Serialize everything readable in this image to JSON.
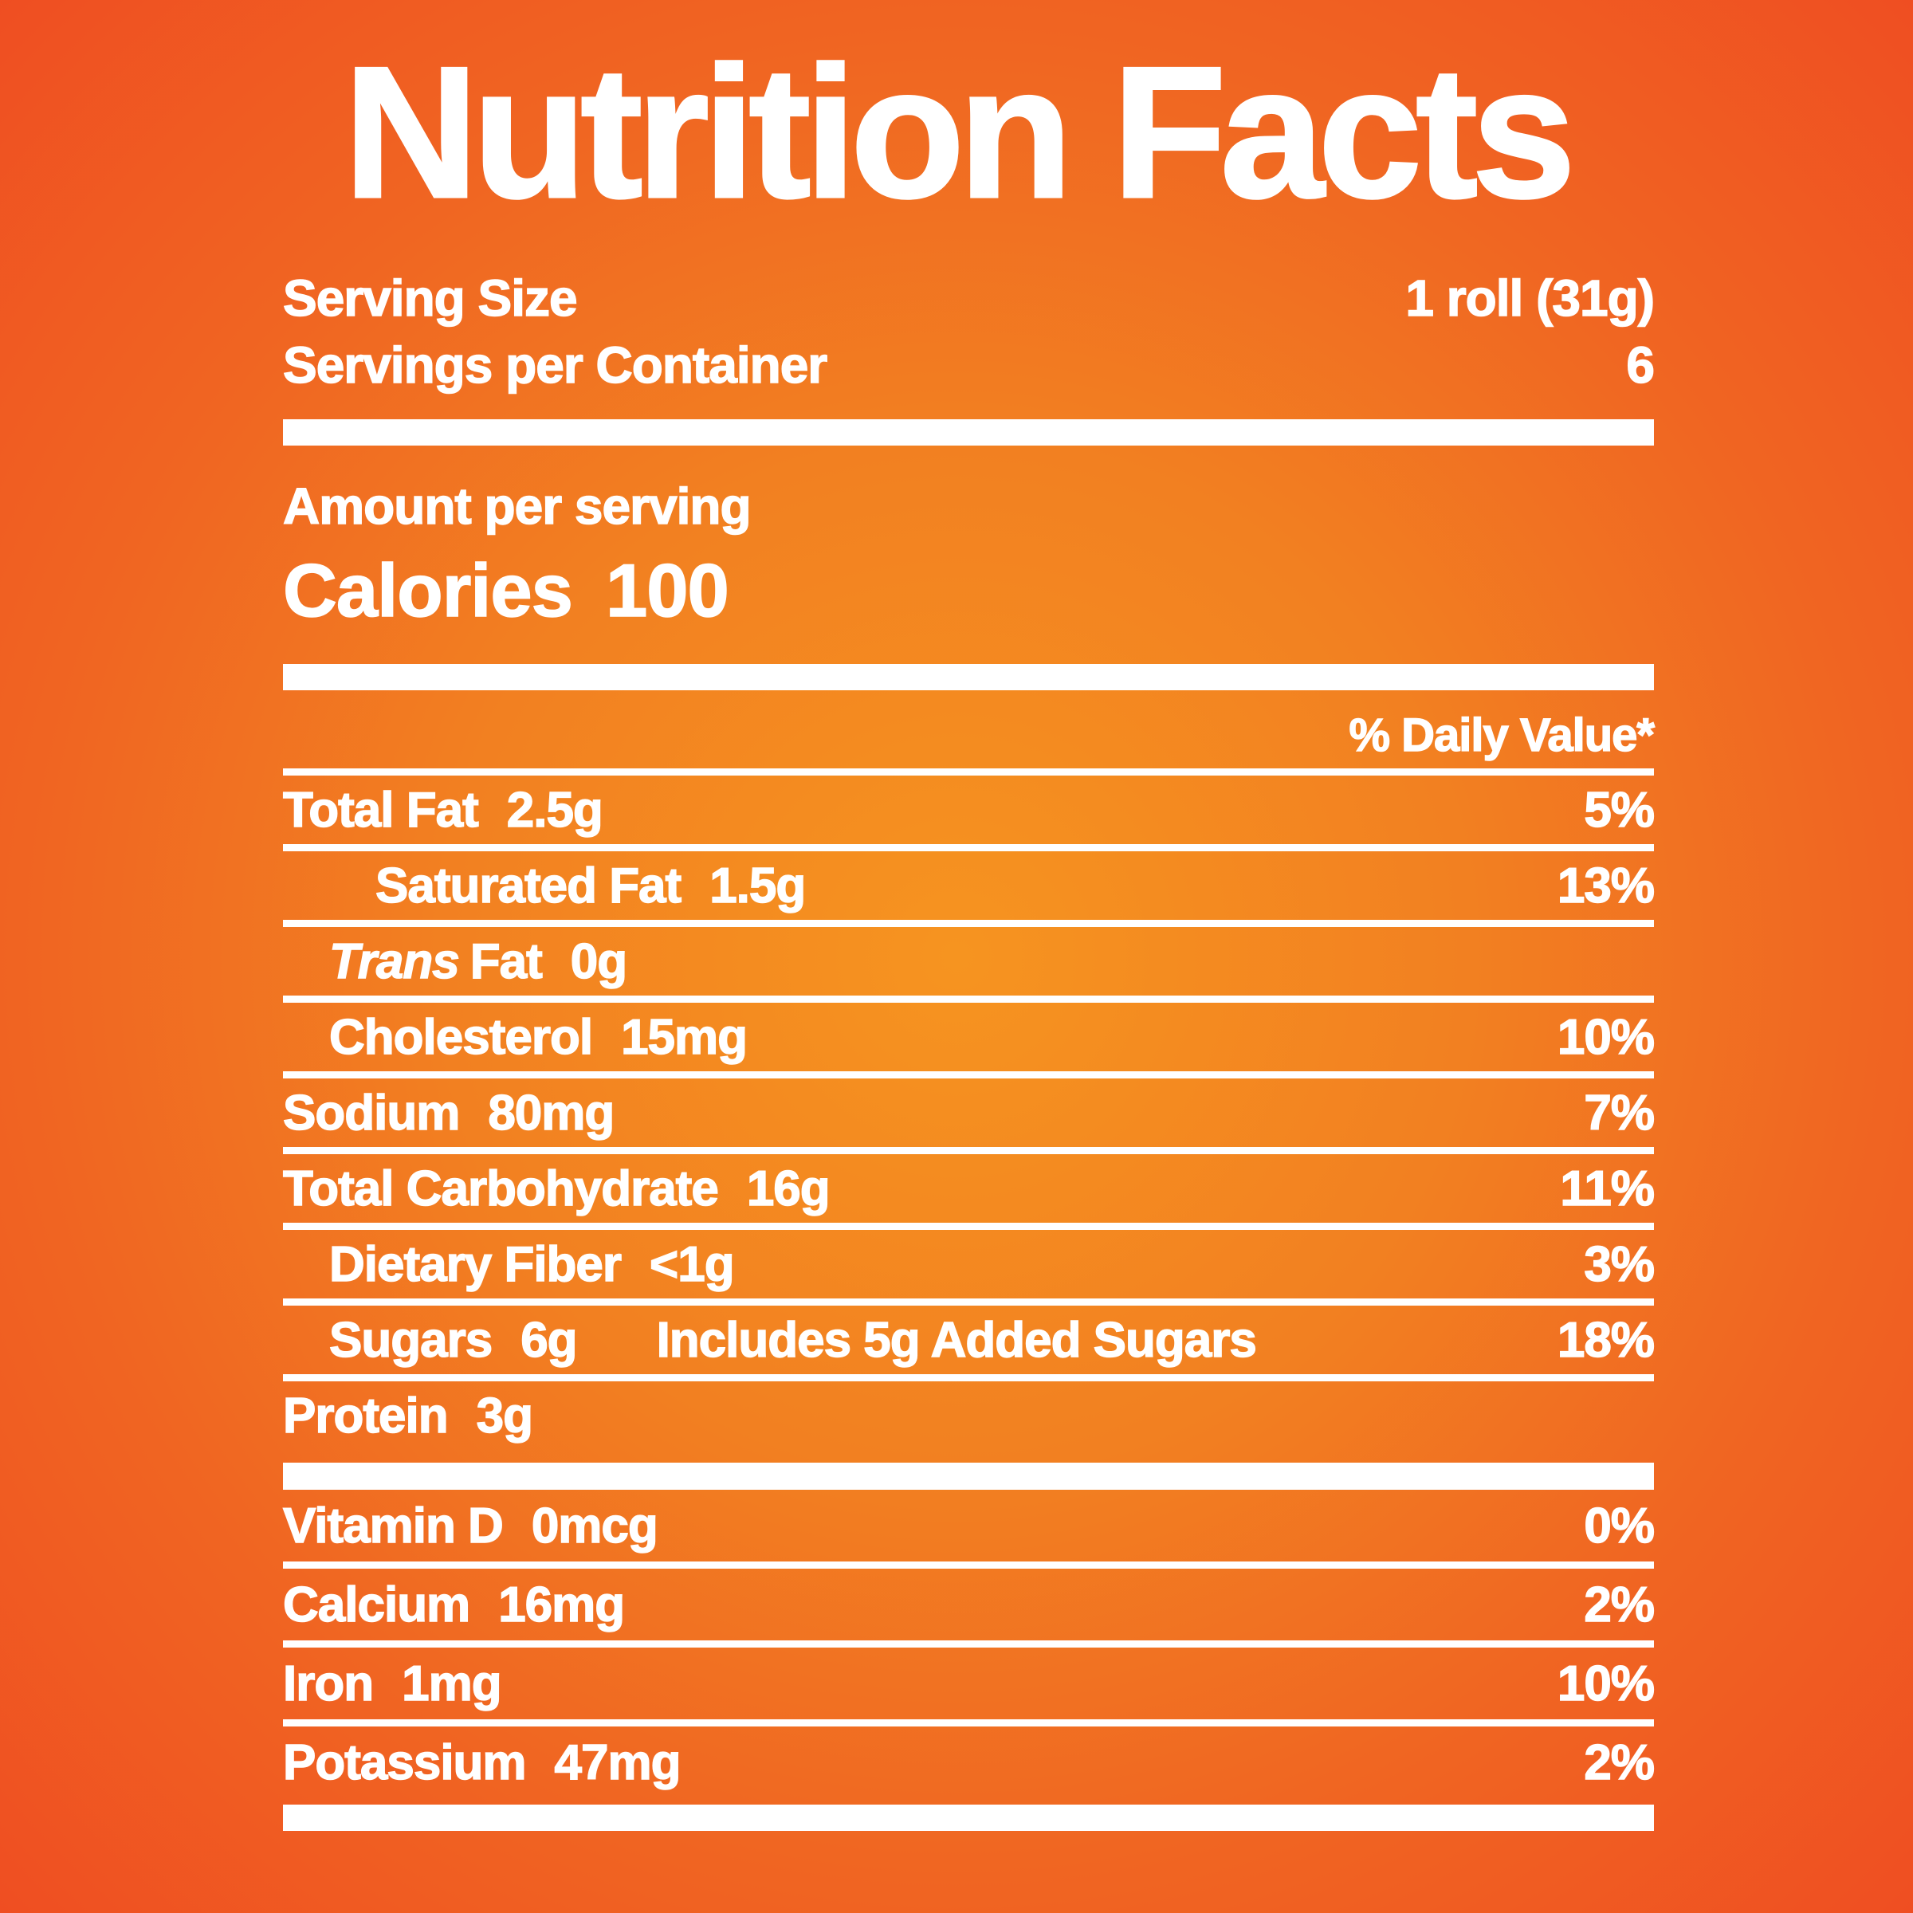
{
  "colors": {
    "background_center": "#F69420",
    "background_edge": "#EF4E22",
    "text": "#FFFFFF"
  },
  "title": "Nutrition Facts",
  "serving": {
    "rows": [
      {
        "label": "Serving Size",
        "value": "1 roll (31g)"
      },
      {
        "label": "Servings per Container",
        "value": "6"
      }
    ]
  },
  "calories": {
    "amount_label": "Amount per serving",
    "label": "Calories",
    "value": "100"
  },
  "daily_value_header": "% Daily Value*",
  "nutrients": [
    {
      "label": "Total Fat",
      "amount": "2.5g",
      "dv": "5%",
      "indent": 0
    },
    {
      "label": "Saturated Fat",
      "amount": "1.5g",
      "dv": "13%",
      "indent": 2
    },
    {
      "label_italic": "Trans",
      "label": "Fat",
      "amount": "0g",
      "dv": "",
      "indent": 1
    },
    {
      "label": "Cholesterol",
      "amount": "15mg",
      "dv": "10%",
      "indent": 1
    },
    {
      "label": "Sodium",
      "amount": "80mg",
      "dv": "7%",
      "indent": 0
    },
    {
      "label": "Total Carbohydrate",
      "amount": "16g",
      "dv": "11%",
      "indent": 0
    },
    {
      "label": "Dietary Fiber",
      "amount": "<1g",
      "dv": "3%",
      "indent": 1
    },
    {
      "label": "Sugars",
      "amount": "6g",
      "extra": "Includes 5g Added Sugars",
      "dv": "18%",
      "indent": 1
    },
    {
      "label": "Protein",
      "amount": "3g",
      "dv": "",
      "indent": 0
    }
  ],
  "vitamins": [
    {
      "label": "Vitamin D",
      "amount": "0mcg",
      "dv": "0%"
    },
    {
      "label": "Calcium",
      "amount": "16mg",
      "dv": "2%"
    },
    {
      "label": "Iron",
      "amount": "1mg",
      "dv": "10%"
    },
    {
      "label": "Potassium",
      "amount": "47mg",
      "dv": "2%"
    }
  ]
}
